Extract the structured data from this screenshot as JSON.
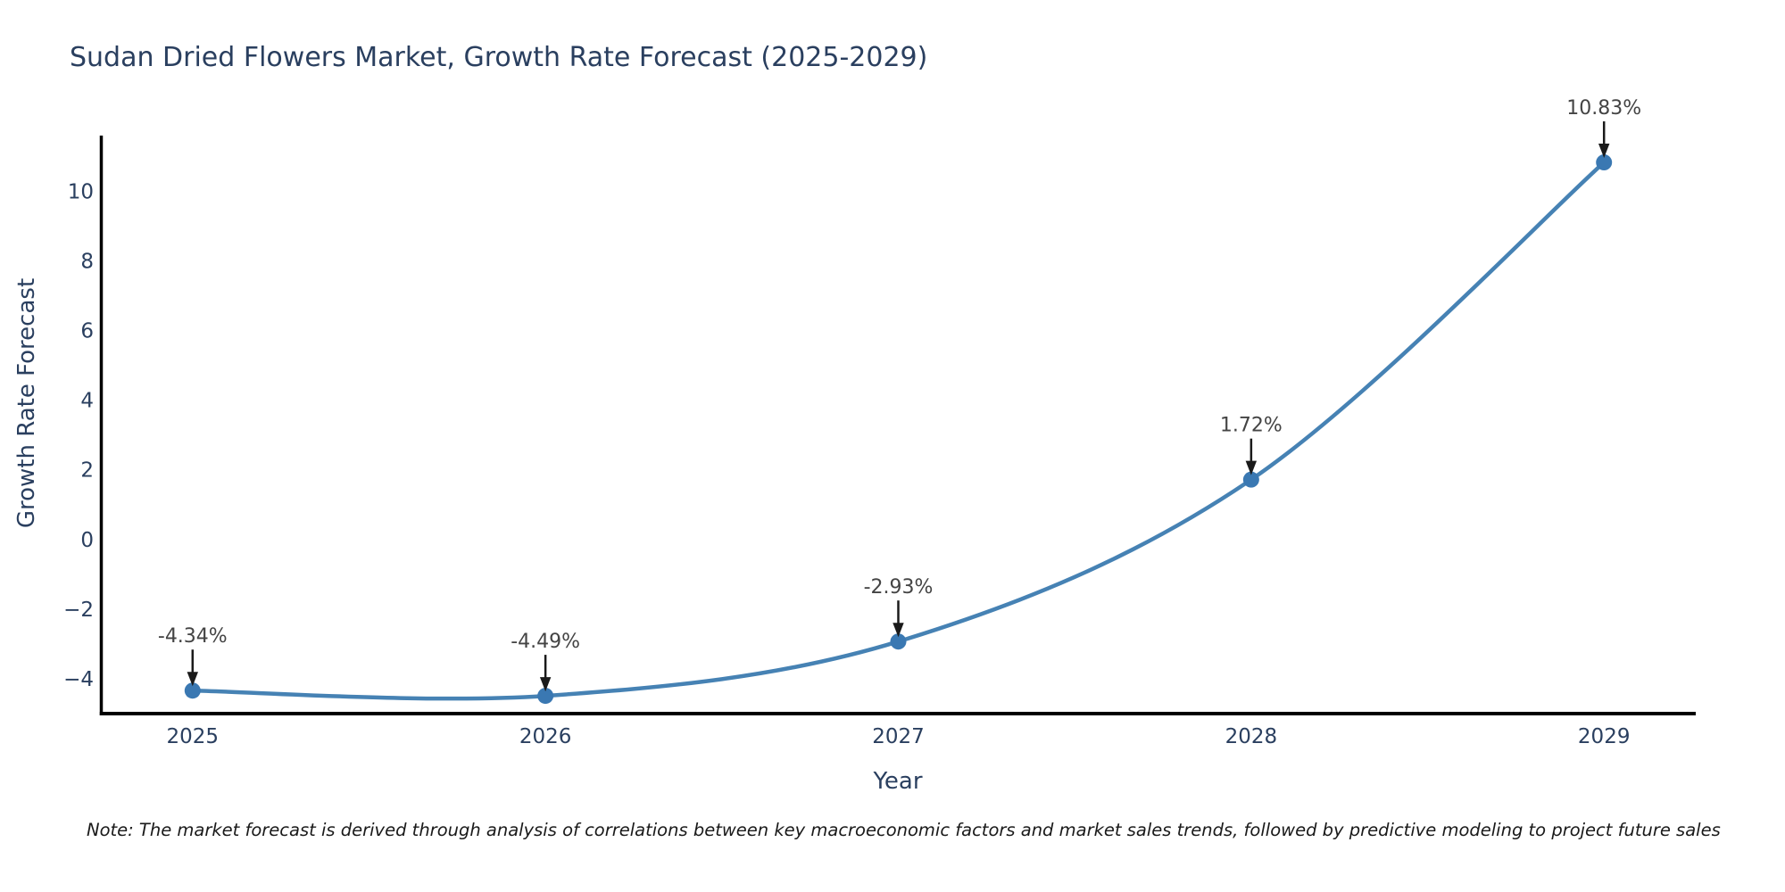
{
  "chart_data": {
    "type": "line",
    "title": "Sudan Dried Flowers Market, Growth Rate Forecast (2025-2029)",
    "xlabel": "Year",
    "ylabel": "Growth Rate Forecast",
    "x": [
      2025,
      2026,
      2027,
      2028,
      2029
    ],
    "y": [
      -4.34,
      -4.49,
      -2.93,
      1.72,
      10.83
    ],
    "point_labels": [
      "-4.34%",
      "-4.49%",
      "-2.93%",
      "1.72%",
      "10.83%"
    ],
    "series_name": "Growth Rate Forecast",
    "line_shape": "spline",
    "grid": false,
    "legend": false,
    "xticks": [
      2025,
      2026,
      2027,
      2028,
      2029
    ],
    "yticks": [
      -4,
      -2,
      0,
      2,
      4,
      6,
      8,
      10
    ],
    "xlim": [
      2024.74,
      2029.26
    ],
    "ylim": [
      -5.0,
      11.6
    ],
    "colors": {
      "line": "#4682b4",
      "marker": "#3a78b2",
      "axis": "#000000",
      "tick_text": "#2a3f5f",
      "annotation_text": "#444444",
      "arrow": "#1a1a1a",
      "background": "#ffffff"
    }
  },
  "note": "Note: The market forecast is derived through analysis of correlations between key macroeconomic factors and market sales trends, followed by predictive modeling to project future sales"
}
